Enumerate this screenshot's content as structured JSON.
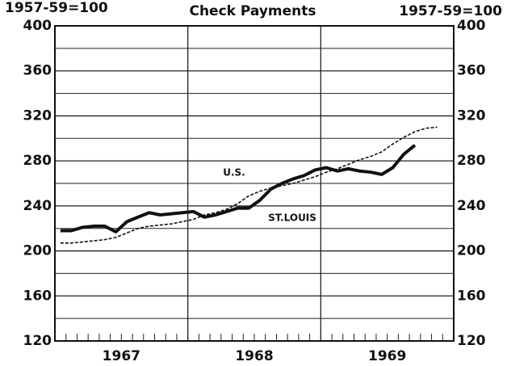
{
  "chart_data": {
    "type": "line",
    "title": "Check Payments",
    "y_label_left": "1957-59=100",
    "y_label_right": "1957-59=100",
    "x": [
      0.5,
      1.5,
      2.5,
      3.5,
      4.5,
      5.5,
      6.5,
      7.5,
      8.5,
      9.5,
      10.5,
      11.5,
      12.5,
      13.5,
      14.5,
      15.5,
      16.5,
      17.5,
      18.5,
      19.5,
      20.5,
      21.5,
      22.5,
      23.5,
      24.5,
      25.5,
      26.5,
      27.5,
      28.5,
      29.5,
      30.5,
      31.5,
      32.5,
      33.5,
      34.5
    ],
    "xlim": [
      0,
      36
    ],
    "xticks": [
      {
        "value": 6,
        "label": "1967"
      },
      {
        "value": 18,
        "label": "1968"
      },
      {
        "value": 30,
        "label": "1969"
      }
    ],
    "year_lines": [
      12,
      24
    ],
    "series": [
      {
        "name": "ST.LOUIS",
        "color": "#111",
        "values": [
          218,
          218,
          221,
          222,
          222,
          217,
          226,
          230,
          234,
          232,
          233,
          234,
          235,
          230,
          232,
          235,
          238,
          238,
          245,
          255,
          260,
          264,
          267,
          272,
          274,
          271,
          273,
          271,
          270,
          268,
          274,
          286,
          294,
          null,
          null
        ]
      },
      {
        "name": "U.S.",
        "color": "#111",
        "dashed": true,
        "values": [
          207,
          207,
          208,
          209,
          210,
          212,
          216,
          220,
          222,
          223,
          224,
          226,
          228,
          232,
          234,
          237,
          242,
          249,
          253,
          256,
          258,
          260,
          263,
          266,
          270,
          273,
          277,
          281,
          284,
          288,
          295,
          301,
          306,
          309,
          310
        ]
      }
    ],
    "ylim": [
      120,
      400
    ],
    "yticks": [
      120,
      160,
      200,
      240,
      280,
      320,
      360,
      400
    ],
    "minor_yticks": [
      140,
      180,
      220,
      260,
      300,
      340,
      380
    ]
  }
}
